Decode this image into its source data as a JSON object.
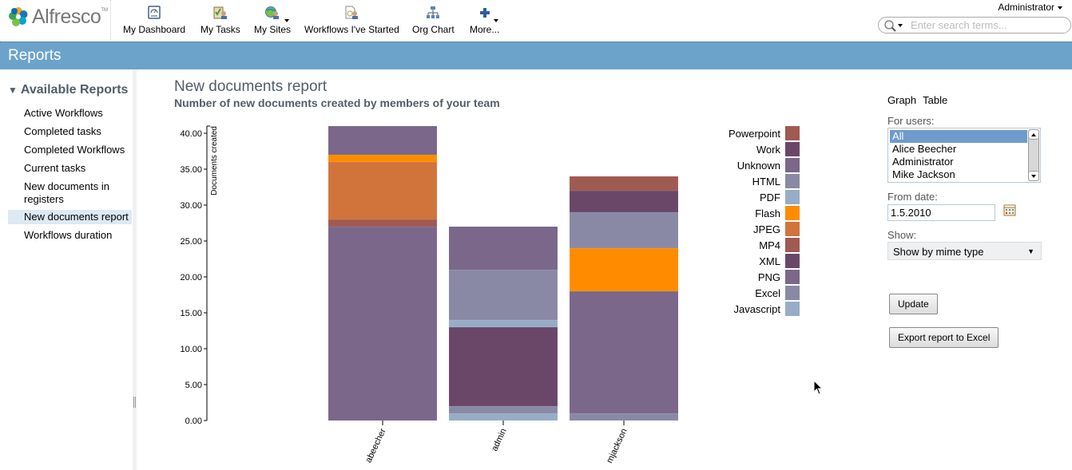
{
  "app": {
    "logo_text": "Alfresco",
    "logo_tm": "TM",
    "nav": [
      {
        "label": "My Dashboard",
        "icon": "dashboard-icon"
      },
      {
        "label": "My Tasks",
        "icon": "tasks-icon"
      },
      {
        "label": "My Sites",
        "icon": "sites-icon",
        "has_dropdown": true
      },
      {
        "label": "Workflows I've Started",
        "icon": "workflows-icon"
      },
      {
        "label": "Org Chart",
        "icon": "org-chart-icon"
      },
      {
        "label": "More...",
        "icon": "plus-icon",
        "has_dropdown": true
      }
    ],
    "user_menu": "Administrator",
    "search": {
      "placeholder": "Enter search terms...",
      "value": ""
    }
  },
  "page": {
    "title": "Reports"
  },
  "sidebar": {
    "heading": "Available Reports",
    "items": [
      {
        "label": "Active Workflows",
        "active": false
      },
      {
        "label": "Completed tasks",
        "active": false
      },
      {
        "label": "Completed Workflows",
        "active": false
      },
      {
        "label": "Current tasks",
        "active": false
      },
      {
        "label": "New documents in registers",
        "active": false
      },
      {
        "label": "New documents report",
        "active": true
      },
      {
        "label": "Workflows duration",
        "active": false
      }
    ]
  },
  "report": {
    "title": "New documents report",
    "subtitle": "Number of new documents created by members of your team"
  },
  "controls": {
    "view_tabs": [
      "Graph",
      "Table"
    ],
    "users_label": "For users:",
    "users": [
      {
        "label": "All",
        "selected": true
      },
      {
        "label": "Alice Beecher",
        "selected": false
      },
      {
        "label": "Administrator",
        "selected": false
      },
      {
        "label": "Mike Jackson",
        "selected": false
      }
    ],
    "from_date_label": "From date:",
    "from_date": "1.5.2010",
    "show_label": "Show:",
    "show_value": "Show by mime type",
    "update_button": "Update",
    "export_button": "Export report to Excel"
  },
  "chart_data": {
    "type": "bar",
    "stacked": true,
    "title": "",
    "ylabel": "Documents created",
    "xlabel": "",
    "ylim": [
      0,
      40
    ],
    "yticks": [
      "0.00",
      "5.00",
      "10.00",
      "15.00",
      "20.00",
      "25.00",
      "30.00",
      "35.00",
      "40.00"
    ],
    "ytick_values": [
      0,
      5,
      10,
      15,
      20,
      25,
      30,
      35,
      40
    ],
    "categories": [
      "abeecher",
      "admin",
      "mjackson"
    ],
    "legend_position": "right",
    "series": [
      {
        "name": "Powerpoint",
        "color": "#A05A52",
        "values": [
          0,
          0,
          2
        ]
      },
      {
        "name": "Work",
        "color": "#6A4769",
        "values": [
          0,
          0,
          3
        ]
      },
      {
        "name": "Unknown",
        "color": "#7A6789",
        "values": [
          4,
          6,
          0
        ]
      },
      {
        "name": "HTML",
        "color": "#8A89A5",
        "values": [
          0,
          7,
          5
        ]
      },
      {
        "name": "PDF",
        "color": "#97ACC6",
        "values": [
          0,
          1,
          0
        ]
      },
      {
        "name": "Flash",
        "color": "#FF8C00",
        "values": [
          1,
          0,
          6
        ]
      },
      {
        "name": "JPEG",
        "color": "#D0743C",
        "values": [
          8,
          0,
          0
        ]
      },
      {
        "name": "MP4",
        "color": "#A05A52",
        "values": [
          1,
          0,
          0
        ]
      },
      {
        "name": "XML",
        "color": "#6A4769",
        "values": [
          0,
          11,
          0
        ]
      },
      {
        "name": "PNG",
        "color": "#7A6789",
        "values": [
          27,
          0,
          17
        ]
      },
      {
        "name": "Excel",
        "color": "#8A89A5",
        "values": [
          0,
          1,
          1
        ]
      },
      {
        "name": "Javascript",
        "color": "#97ACC6",
        "values": [
          0,
          1,
          0
        ]
      }
    ],
    "totals": [
      41,
      27,
      34
    ]
  }
}
